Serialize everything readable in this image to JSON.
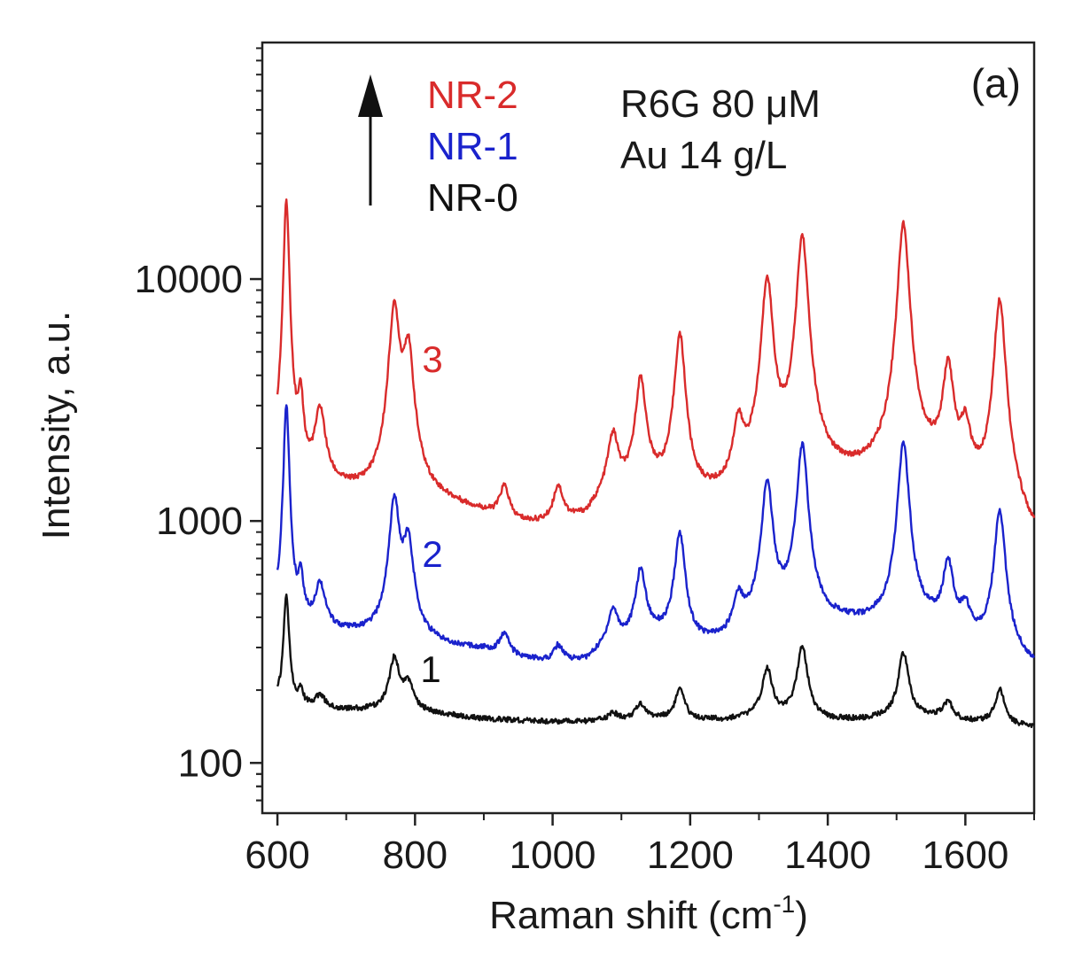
{
  "chart_data": {
    "type": "line",
    "panel_label": "(a)",
    "xlabel": "Raman shift (cm",
    "xlabel_sup": "-1",
    "xlabel_close": ")",
    "ylabel": "Intensity, a.u.",
    "yscale": "log",
    "xlim": [
      578,
      1700
    ],
    "ylim": [
      62,
      95000
    ],
    "x_ticks": [
      600,
      800,
      1000,
      1200,
      1400,
      1600
    ],
    "x_tick_labels": [
      "600",
      "800",
      "1000",
      "1200",
      "1400",
      "1600"
    ],
    "x_minor_ticks": [
      700,
      900,
      1100,
      1300,
      1500,
      1700
    ],
    "y_ticks": [
      100,
      1000,
      10000
    ],
    "y_tick_labels": [
      "100",
      "1000",
      "10000"
    ],
    "legend": {
      "entries": [
        {
          "text": "NR-2",
          "color": "#d92b2b"
        },
        {
          "text": "NR-1",
          "color": "#1a22cc"
        },
        {
          "text": "NR-0",
          "color": "#111111"
        }
      ],
      "arrow": "up-arrow"
    },
    "annotations": [
      "R6G 80 μM",
      "Au 14 g/L"
    ],
    "series": [
      {
        "label": "3",
        "color": "#d92b2b",
        "baseline": [
          [
            600,
            1550
          ],
          [
            640,
            1400
          ],
          [
            700,
            1300
          ],
          [
            760,
            1250
          ],
          [
            800,
            1250
          ],
          [
            850,
            1150
          ],
          [
            900,
            1050
          ],
          [
            940,
            950
          ],
          [
            1000,
            930
          ],
          [
            1050,
            1000
          ],
          [
            1080,
            1250
          ],
          [
            1150,
            1300
          ],
          [
            1200,
            1150
          ],
          [
            1250,
            1200
          ],
          [
            1300,
            1500
          ],
          [
            1350,
            1600
          ],
          [
            1400,
            1500
          ],
          [
            1450,
            1500
          ],
          [
            1500,
            1600
          ],
          [
            1550,
            1600
          ],
          [
            1600,
            1300
          ],
          [
            1650,
            1100
          ],
          [
            1700,
            780
          ]
        ],
        "peaks": [
          [
            613,
            21000
          ],
          [
            634,
            3000
          ],
          [
            662,
            2800
          ],
          [
            770,
            7500
          ],
          [
            790,
            5000
          ],
          [
            930,
            1350
          ],
          [
            1008,
            1350
          ],
          [
            1088,
            2200
          ],
          [
            1128,
            3800
          ],
          [
            1185,
            5800
          ],
          [
            1270,
            2400
          ],
          [
            1312,
            10000
          ],
          [
            1363,
            15000
          ],
          [
            1510,
            17000
          ],
          [
            1575,
            4300
          ],
          [
            1600,
            2300
          ],
          [
            1650,
            8200
          ]
        ]
      },
      {
        "label": "2",
        "color": "#1a22cc",
        "baseline": [
          [
            600,
            380
          ],
          [
            640,
            360
          ],
          [
            700,
            340
          ],
          [
            760,
            330
          ],
          [
            800,
            320
          ],
          [
            850,
            300
          ],
          [
            900,
            290
          ],
          [
            940,
            270
          ],
          [
            1000,
            255
          ],
          [
            1050,
            260
          ],
          [
            1080,
            300
          ],
          [
            1150,
            330
          ],
          [
            1200,
            300
          ],
          [
            1250,
            310
          ],
          [
            1300,
            380
          ],
          [
            1350,
            400
          ],
          [
            1400,
            380
          ],
          [
            1450,
            370
          ],
          [
            1500,
            380
          ],
          [
            1550,
            370
          ],
          [
            1600,
            320
          ],
          [
            1650,
            290
          ],
          [
            1700,
            245
          ]
        ],
        "peaks": [
          [
            613,
            3000
          ],
          [
            634,
            560
          ],
          [
            662,
            540
          ],
          [
            770,
            1200
          ],
          [
            790,
            800
          ],
          [
            930,
            340
          ],
          [
            1008,
            300
          ],
          [
            1088,
            420
          ],
          [
            1128,
            620
          ],
          [
            1185,
            880
          ],
          [
            1270,
            470
          ],
          [
            1312,
            1450
          ],
          [
            1363,
            2050
          ],
          [
            1510,
            2100
          ],
          [
            1575,
            660
          ],
          [
            1600,
            420
          ],
          [
            1650,
            1100
          ]
        ]
      },
      {
        "label": "1",
        "color": "#111111",
        "baseline": [
          [
            600,
            178
          ],
          [
            640,
            170
          ],
          [
            700,
            165
          ],
          [
            760,
            165
          ],
          [
            800,
            163
          ],
          [
            850,
            157
          ],
          [
            900,
            152
          ],
          [
            940,
            150
          ],
          [
            1000,
            148
          ],
          [
            1050,
            148
          ],
          [
            1080,
            150
          ],
          [
            1150,
            152
          ],
          [
            1200,
            150
          ],
          [
            1250,
            150
          ],
          [
            1300,
            155
          ],
          [
            1350,
            155
          ],
          [
            1400,
            150
          ],
          [
            1450,
            150
          ],
          [
            1500,
            155
          ],
          [
            1550,
            155
          ],
          [
            1600,
            148
          ],
          [
            1650,
            145
          ],
          [
            1700,
            140
          ]
        ],
        "peaks": [
          [
            613,
            500
          ],
          [
            634,
            195
          ],
          [
            662,
            190
          ],
          [
            770,
            270
          ],
          [
            790,
            210
          ],
          [
            1088,
            160
          ],
          [
            1128,
            175
          ],
          [
            1185,
            200
          ],
          [
            1312,
            245
          ],
          [
            1363,
            305
          ],
          [
            1510,
            285
          ],
          [
            1575,
            178
          ],
          [
            1650,
            200
          ]
        ]
      }
    ]
  }
}
